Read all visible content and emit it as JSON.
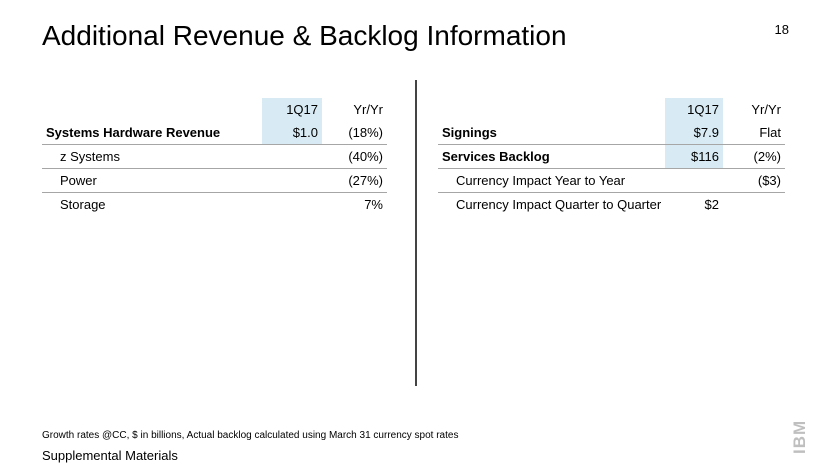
{
  "page": {
    "title": "Additional Revenue & Backlog Information",
    "page_number": "18",
    "footnote": "Growth rates @CC, $ in billions, Actual backlog calculated using March 31 currency spot rates",
    "supplemental": "Supplemental Materials",
    "logo": "IBM",
    "logo_icon": "ibm-logo-icon"
  },
  "colors": {
    "highlight": "#d8ebf4",
    "divider": "#444444",
    "rule": "#a6a6a6",
    "logo": "#bfbfbf"
  },
  "left_table": {
    "headers": [
      "",
      "1Q17",
      "Yr/Yr"
    ],
    "rows": [
      {
        "label": "Systems Hardware Revenue",
        "value": "$1.0",
        "change": "(18%)"
      },
      {
        "label": "z Systems",
        "value": "",
        "change": "(40%)"
      },
      {
        "label": "Power",
        "value": "",
        "change": "(27%)"
      },
      {
        "label": "Storage",
        "value": "",
        "change": "7%"
      }
    ]
  },
  "right_table": {
    "headers": [
      "",
      "1Q17",
      "Yr/Yr"
    ],
    "rows": [
      {
        "label": "Signings",
        "value": "$7.9",
        "change": "Flat"
      },
      {
        "label": "Services Backlog",
        "value": "$116",
        "change": "(2%)"
      },
      {
        "label": "Currency Impact Year to Year",
        "value": "",
        "change": "($3)"
      },
      {
        "label": "Currency Impact Quarter to Quarter",
        "value": "$2",
        "change": ""
      }
    ]
  }
}
